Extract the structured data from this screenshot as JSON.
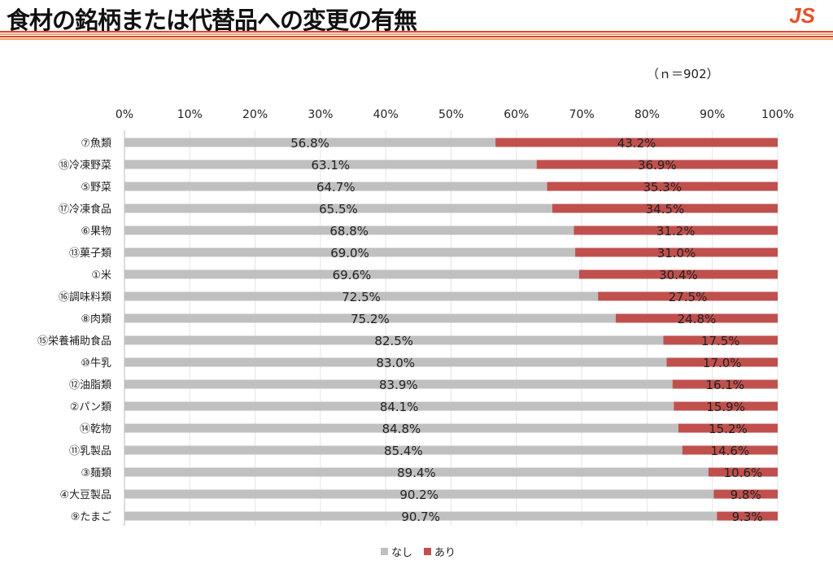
{
  "header": {
    "title": "食材の銘柄または代替品への変更の有無",
    "logo": "JS"
  },
  "note": "（ｎ＝902）",
  "colors": {
    "nashi": "#c0c0c0",
    "ari": "#c0504d",
    "stripe_red": "#e0452b",
    "stripe_orange": "#f5a46a"
  },
  "chart_data": {
    "type": "bar",
    "stacked": true,
    "orientation": "horizontal",
    "xlim": [
      0,
      100
    ],
    "x_ticks": [
      "0%",
      "10%",
      "20%",
      "30%",
      "40%",
      "50%",
      "60%",
      "70%",
      "80%",
      "90%",
      "100%"
    ],
    "categories": [
      "⑦魚類",
      "⑱冷凍野菜",
      "⑤野菜",
      "⑰冷凍食品",
      "⑥果物",
      "⑬菓子類",
      "①米",
      "⑯調味料類",
      "⑧肉類",
      "⑮栄養補助食品",
      "⑩牛乳",
      "⑫油脂類",
      "②パン類",
      "⑭乾物",
      "⑪乳製品",
      "③麺類",
      "④大豆製品",
      "⑨たまご"
    ],
    "series": [
      {
        "name": "なし",
        "values": [
          56.8,
          63.1,
          64.7,
          65.5,
          68.8,
          69.0,
          69.6,
          72.5,
          75.2,
          82.5,
          83.0,
          83.9,
          84.1,
          84.8,
          85.4,
          89.4,
          90.2,
          90.7
        ]
      },
      {
        "name": "あり",
        "values": [
          43.2,
          36.9,
          35.3,
          34.5,
          31.2,
          31.0,
          30.4,
          27.5,
          24.8,
          17.5,
          17.0,
          16.1,
          15.9,
          15.2,
          14.6,
          10.6,
          9.8,
          9.3
        ]
      }
    ],
    "legend_position": "bottom"
  }
}
